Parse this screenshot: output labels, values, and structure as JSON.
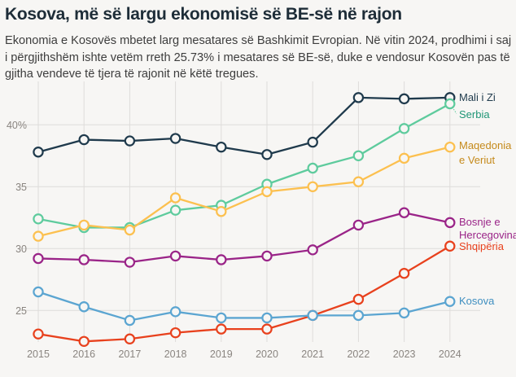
{
  "header": {
    "title": "Kosova, më së largu ekonomisë së BE-së në rajon",
    "subtitle": "Ekonomia e Kosovës mbetet larg mesatares së Bashkimit Evropian. Në vitin 2024, prodhimi i saj i përgjithshëm ishte vetëm rreth 25.73% i mesatares së BE-së, duke e vendosur Kosovën pas të gjitha vendeve të tjera të rajonit në këtë tregues."
  },
  "chart_data": {
    "type": "line",
    "title": "Kosova, më së largu ekonomisë së BE-së në rajon",
    "xlabel": "",
    "ylabel": "",
    "x": [
      2015,
      2016,
      2017,
      2018,
      2019,
      2020,
      2021,
      2022,
      2023,
      2024
    ],
    "x_tick_labels": [
      "2015",
      "2016",
      "2017",
      "2018",
      "2019",
      "2020",
      "2021",
      "2022",
      "2023",
      "2024"
    ],
    "y_ticks": [
      25,
      30,
      35,
      40
    ],
    "y_tick_labels": [
      "25",
      "30",
      "35",
      "40%"
    ],
    "ylim": [
      22.2,
      44.3
    ],
    "grid": "horizontal-and-vertical",
    "legend": "inline-right",
    "series": [
      {
        "name": "Mali i Zi",
        "label_lines": [
          "Mali i Zi"
        ],
        "color": "#1f3a4c",
        "label_color": "#1f3a4c",
        "values": [
          37.8,
          38.8,
          38.7,
          38.9,
          38.2,
          37.6,
          38.6,
          42.2,
          42.1,
          42.2
        ]
      },
      {
        "name": "Serbia",
        "label_lines": [
          "Serbia"
        ],
        "color": "#5ecb9d",
        "label_color": "#1f9676",
        "values": [
          32.4,
          31.7,
          31.7,
          33.1,
          33.5,
          35.2,
          36.5,
          37.5,
          39.7,
          41.7
        ]
      },
      {
        "name": "Maqedonia e Veriut",
        "label_lines": [
          "Maqedonia",
          "e Veriut"
        ],
        "color": "#fcc04f",
        "label_color": "#c58a1b",
        "values": [
          31.0,
          31.9,
          31.5,
          34.1,
          33.0,
          34.6,
          35.0,
          35.4,
          37.3,
          38.2
        ]
      },
      {
        "name": "Bosnje e Hercegovina",
        "label_lines": [
          "Bosnje e",
          "Hercegovina"
        ],
        "color": "#9a2488",
        "label_color": "#9a2488",
        "values": [
          29.2,
          29.1,
          28.9,
          29.4,
          29.1,
          29.4,
          29.9,
          31.9,
          32.9,
          32.1
        ]
      },
      {
        "name": "Shqipëria",
        "label_lines": [
          "Shqipëria"
        ],
        "color": "#e8411d",
        "label_color": "#e8411d",
        "values": [
          23.1,
          22.5,
          22.7,
          23.2,
          23.5,
          23.5,
          24.6,
          25.9,
          28.0,
          30.2
        ]
      },
      {
        "name": "Kosova",
        "label_lines": [
          "Kosova"
        ],
        "color": "#5ba5d1",
        "label_color": "#3f8fc0",
        "values": [
          26.5,
          25.3,
          24.2,
          24.9,
          24.4,
          24.4,
          24.6,
          24.6,
          24.8,
          25.73
        ]
      }
    ]
  }
}
